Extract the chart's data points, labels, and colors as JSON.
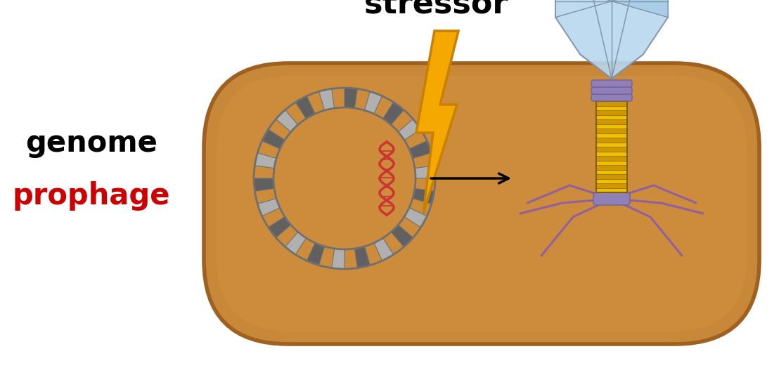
{
  "bg_color": "#ffffff",
  "cell_color": "#c8883a",
  "cell_border_color": "#a06020",
  "stressor_text": "stressor",
  "stressor_fontsize": 32,
  "genome_text": "genome",
  "genome_fontsize": 30,
  "genome_color": "#000000",
  "prophage_text": "prophage",
  "prophage_fontsize": 30,
  "prophage_color": "#cc0000",
  "dna_color": "#707070",
  "dna_red_color": "#cc3333",
  "lightning_color": "#f5a800",
  "lightning_outline": "#c88000",
  "arrow_color": "#000000",
  "phage_head_color": "#b8d8ee",
  "phage_head_edge": "#8090a8",
  "phage_tail_color1": "#f0c000",
  "phage_tail_color2": "#d09800",
  "phage_collar_color": "#9080b8",
  "phage_collar_edge": "#7060a0",
  "phage_leg_color": "#9060a0"
}
